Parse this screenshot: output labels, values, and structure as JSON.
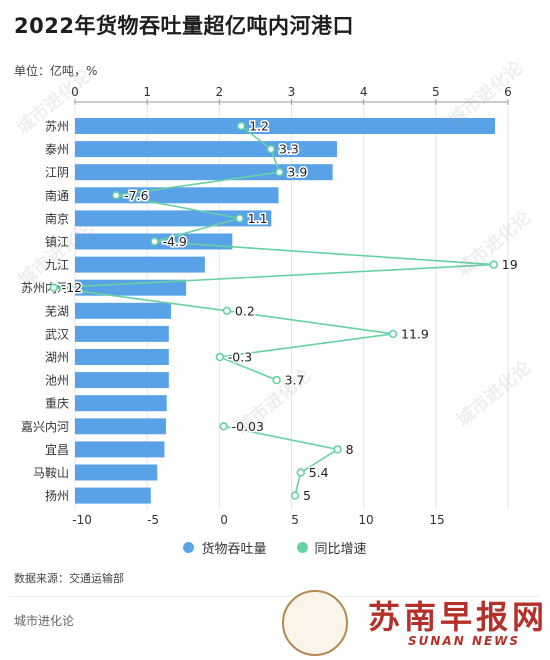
{
  "title": "2022年货物吞吐量超亿吨内河港口",
  "unit_label": "单位：亿吨，%",
  "legend": {
    "throughput": "货物吞吐量",
    "growth": "同比增速"
  },
  "source": "数据来源：交通运输部",
  "brand": "城市进化论",
  "news_logo": {
    "cn": "苏南早报网",
    "en": "SUNAN NEWS"
  },
  "watermark": {
    "cn": "城市进化论",
    "en": "URBAN EVOLUTION"
  },
  "colors": {
    "bar": "#5aa2e8",
    "line": "#66d1a3",
    "axis_text": "#333333",
    "grid": "#e6e6e6"
  },
  "chart_data": {
    "type": "bar",
    "orientation": "horizontal",
    "categories": [
      "苏州",
      "泰州",
      "江阴",
      "南通",
      "南京",
      "镇江",
      "九江",
      "苏州内河",
      "芜湖",
      "武汉",
      "湖州",
      "池州",
      "重庆",
      "嘉兴内河",
      "宜昌",
      "马鞍山",
      "扬州"
    ],
    "series": [
      {
        "name": "货物吞吐量",
        "type": "bar",
        "axis": "top",
        "values": [
          5.82,
          3.63,
          3.57,
          2.82,
          2.72,
          2.18,
          1.8,
          1.54,
          1.33,
          1.3,
          1.3,
          1.3,
          1.27,
          1.26,
          1.24,
          1.14,
          1.05
        ]
      },
      {
        "name": "同比增速",
        "type": "line",
        "axis": "bottom",
        "values": [
          1.2,
          3.3,
          3.9,
          -7.6,
          1.1,
          -4.9,
          19,
          -12,
          0.2,
          11.9,
          -0.3,
          3.7,
          null,
          -0.03,
          8,
          5.4,
          5
        ],
        "labels": [
          "1.2",
          "3.3",
          "3.9",
          "-7.6",
          "1.1",
          "-4.9",
          "19",
          "-12",
          "0.2",
          "11.9",
          "-0.3",
          "3.7",
          "",
          "-0.03",
          "8",
          "5.4",
          "5"
        ]
      }
    ],
    "x_top": {
      "range": [
        0,
        6
      ],
      "ticks": [
        "0",
        "1",
        "2",
        "3",
        "4",
        "5",
        "6"
      ]
    },
    "x_bottom": {
      "range": [
        -10.5,
        20
      ],
      "ticks": [
        "-10",
        "-5",
        "0",
        "5",
        "10",
        "15"
      ],
      "tick_values": [
        -10,
        -5,
        0,
        5,
        10,
        15
      ]
    },
    "grid": true,
    "legend_position": "bottom-center"
  }
}
